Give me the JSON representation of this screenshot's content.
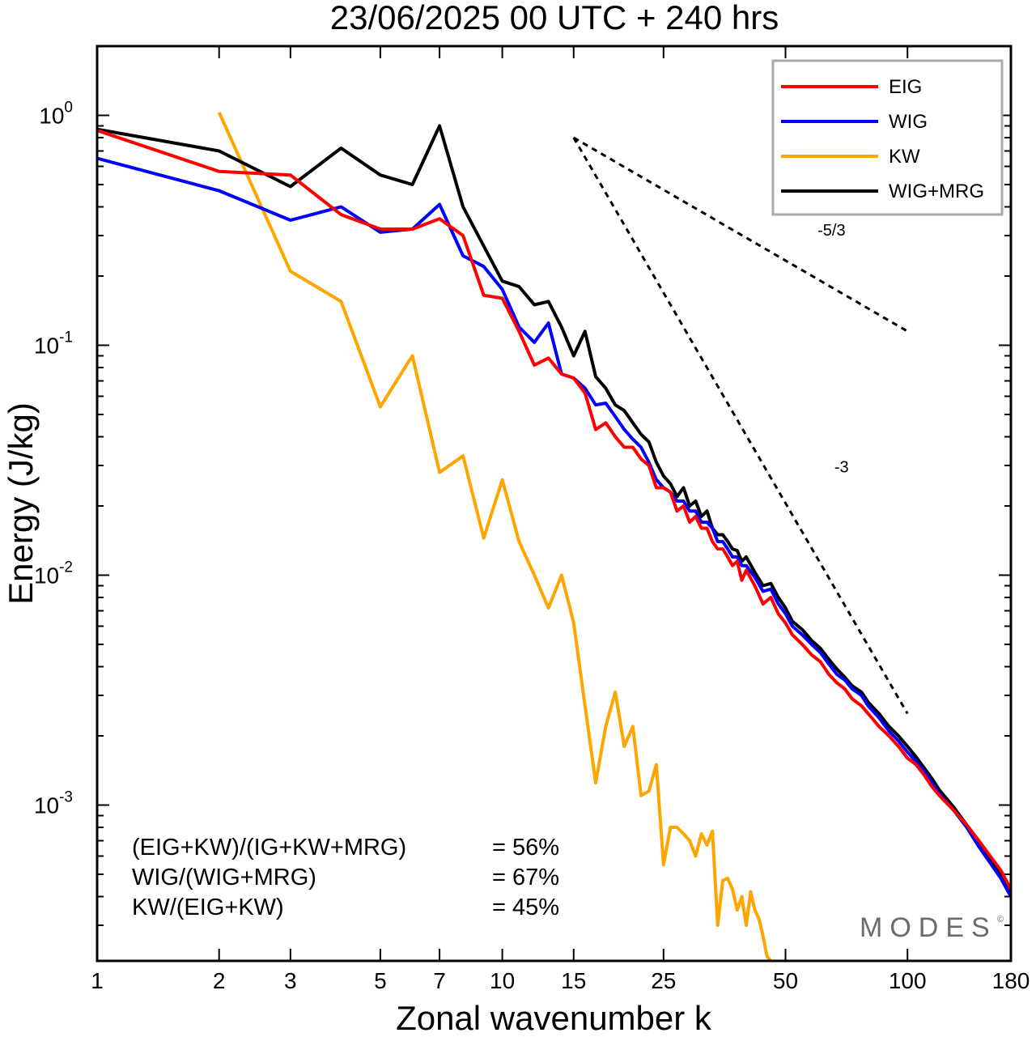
{
  "chart_data": {
    "type": "line",
    "title": "23/06/2025  00 UTC  + 240 hrs",
    "xlabel": "Zonal wavenumber k",
    "ylabel": "Energy (J/kg)",
    "xscale": "log",
    "yscale": "log",
    "xlim": [
      1,
      180
    ],
    "ylim": [
      0.00021,
      2.0
    ],
    "xticks": [
      1,
      2,
      3,
      5,
      7,
      10,
      15,
      25,
      50,
      100,
      180
    ],
    "xtick_labels": [
      "1",
      "2",
      "3",
      "5",
      "7",
      "10",
      "15",
      "25",
      "50",
      "100",
      "180"
    ],
    "yticks": [
      {
        "value": 1,
        "base": "10",
        "exp": "0"
      },
      {
        "value": 0.1,
        "base": "10",
        "exp": "-1"
      },
      {
        "value": 0.01,
        "base": "10",
        "exp": "-2"
      },
      {
        "value": 0.001,
        "base": "10",
        "exp": "-3"
      }
    ],
    "legend_position": "top-right",
    "series": [
      {
        "name": "EIG",
        "color": "#ff0000",
        "points": [
          [
            1,
            0.86
          ],
          [
            2,
            0.57
          ],
          [
            3,
            0.55
          ],
          [
            4,
            0.37
          ],
          [
            5,
            0.32
          ],
          [
            6,
            0.32
          ],
          [
            7,
            0.355
          ],
          [
            8,
            0.3
          ],
          [
            9,
            0.165
          ],
          [
            10,
            0.16
          ],
          [
            11,
            0.115
          ],
          [
            12,
            0.082
          ],
          [
            13,
            0.088
          ],
          [
            14,
            0.075
          ],
          [
            15,
            0.072
          ],
          [
            16,
            0.062
          ],
          [
            17,
            0.043
          ],
          [
            18,
            0.046
          ],
          [
            19,
            0.04
          ],
          [
            20,
            0.036
          ],
          [
            21,
            0.036
          ],
          [
            22,
            0.032
          ],
          [
            23,
            0.03
          ],
          [
            24,
            0.024
          ],
          [
            25,
            0.024
          ],
          [
            26,
            0.023
          ],
          [
            27,
            0.019
          ],
          [
            28,
            0.02
          ],
          [
            29,
            0.017
          ],
          [
            30,
            0.018
          ],
          [
            31,
            0.016
          ],
          [
            32,
            0.016
          ],
          [
            33,
            0.014
          ],
          [
            34,
            0.013
          ],
          [
            35,
            0.013
          ],
          [
            36,
            0.012
          ],
          [
            37,
            0.011
          ],
          [
            38,
            0.0115
          ],
          [
            39,
            0.0095
          ],
          [
            40,
            0.0105
          ],
          [
            42,
            0.009
          ],
          [
            44,
            0.0075
          ],
          [
            46,
            0.008
          ],
          [
            48,
            0.0068
          ],
          [
            50,
            0.0062
          ],
          [
            52,
            0.0055
          ],
          [
            55,
            0.005
          ],
          [
            58,
            0.0045
          ],
          [
            61,
            0.0042
          ],
          [
            64,
            0.0037
          ],
          [
            67,
            0.0034
          ],
          [
            70,
            0.0032
          ],
          [
            73,
            0.0029
          ],
          [
            77,
            0.0027
          ],
          [
            80,
            0.0025
          ],
          [
            85,
            0.0022
          ],
          [
            90,
            0.002
          ],
          [
            95,
            0.0018
          ],
          [
            100,
            0.0016
          ],
          [
            105,
            0.0015
          ],
          [
            110,
            0.00135
          ],
          [
            115,
            0.0012
          ],
          [
            120,
            0.0011
          ],
          [
            130,
            0.00095
          ],
          [
            140,
            0.00082
          ],
          [
            150,
            0.0007
          ],
          [
            160,
            0.0006
          ],
          [
            170,
            0.00052
          ],
          [
            180,
            0.00043
          ]
        ]
      },
      {
        "name": "WIG",
        "color": "#0000ff",
        "points": [
          [
            1,
            0.65
          ],
          [
            2,
            0.47
          ],
          [
            3,
            0.35
          ],
          [
            4,
            0.4
          ],
          [
            5,
            0.31
          ],
          [
            6,
            0.32
          ],
          [
            7,
            0.41
          ],
          [
            8,
            0.245
          ],
          [
            9,
            0.22
          ],
          [
            10,
            0.175
          ],
          [
            11,
            0.12
          ],
          [
            12,
            0.103
          ],
          [
            13,
            0.125
          ],
          [
            14,
            0.075
          ],
          [
            15,
            0.072
          ],
          [
            16,
            0.065
          ],
          [
            17,
            0.055
          ],
          [
            18,
            0.056
          ],
          [
            19,
            0.049
          ],
          [
            20,
            0.043
          ],
          [
            21,
            0.039
          ],
          [
            22,
            0.036
          ],
          [
            23,
            0.031
          ],
          [
            24,
            0.026
          ],
          [
            25,
            0.024
          ],
          [
            26,
            0.023
          ],
          [
            27,
            0.021
          ],
          [
            28,
            0.021
          ],
          [
            29,
            0.019
          ],
          [
            30,
            0.019
          ],
          [
            31,
            0.017
          ],
          [
            32,
            0.017
          ],
          [
            33,
            0.016
          ],
          [
            34,
            0.014
          ],
          [
            35,
            0.014
          ],
          [
            36,
            0.013
          ],
          [
            37,
            0.012
          ],
          [
            38,
            0.012
          ],
          [
            39,
            0.011
          ],
          [
            40,
            0.011
          ],
          [
            42,
            0.0098
          ],
          [
            44,
            0.0085
          ],
          [
            46,
            0.0087
          ],
          [
            48,
            0.0075
          ],
          [
            50,
            0.0068
          ],
          [
            52,
            0.006
          ],
          [
            55,
            0.0055
          ],
          [
            58,
            0.005
          ],
          [
            61,
            0.0046
          ],
          [
            64,
            0.0041
          ],
          [
            67,
            0.0037
          ],
          [
            70,
            0.0035
          ],
          [
            73,
            0.0032
          ],
          [
            77,
            0.003
          ],
          [
            80,
            0.0027
          ],
          [
            85,
            0.0024
          ],
          [
            90,
            0.0021
          ],
          [
            95,
            0.0019
          ],
          [
            100,
            0.0017
          ],
          [
            105,
            0.00155
          ],
          [
            110,
            0.0014
          ],
          [
            115,
            0.00125
          ],
          [
            120,
            0.00112
          ],
          [
            130,
            0.00095
          ],
          [
            140,
            0.0008
          ],
          [
            150,
            0.00066
          ],
          [
            160,
            0.00056
          ],
          [
            170,
            0.00048
          ],
          [
            180,
            0.0004
          ]
        ]
      },
      {
        "name": "KW",
        "color": "#ffa500",
        "points": [
          [
            2,
            1.03
          ],
          [
            3,
            0.21
          ],
          [
            4,
            0.155
          ],
          [
            5,
            0.054
          ],
          [
            6,
            0.09
          ],
          [
            7,
            0.028
          ],
          [
            8,
            0.033
          ],
          [
            9,
            0.0145
          ],
          [
            10,
            0.026
          ],
          [
            11,
            0.014
          ],
          [
            12,
            0.01
          ],
          [
            13,
            0.0072
          ],
          [
            14,
            0.01
          ],
          [
            15,
            0.0062
          ],
          [
            16,
            0.0027
          ],
          [
            17,
            0.00125
          ],
          [
            18,
            0.0022
          ],
          [
            19,
            0.0031
          ],
          [
            20,
            0.0018
          ],
          [
            21,
            0.0022
          ],
          [
            22,
            0.0011
          ],
          [
            23,
            0.00115
          ],
          [
            24,
            0.0015
          ],
          [
            25,
            0.00055
          ],
          [
            26,
            0.0008
          ],
          [
            27,
            0.0008
          ],
          [
            28,
            0.00075
          ],
          [
            29,
            0.0007
          ],
          [
            30,
            0.0006
          ],
          [
            31,
            0.00075
          ],
          [
            32,
            0.00067
          ],
          [
            33,
            0.00077
          ],
          [
            34,
            0.0003
          ],
          [
            35,
            0.00047
          ],
          [
            36,
            0.00048
          ],
          [
            37,
            0.00043
          ],
          [
            38,
            0.00035
          ],
          [
            39,
            0.0004
          ],
          [
            40,
            0.0003
          ],
          [
            41,
            0.00042
          ],
          [
            42,
            0.00035
          ],
          [
            43,
            0.00032
          ],
          [
            44,
            0.00027
          ],
          [
            45,
            0.00022
          ],
          [
            46,
            0.00021
          ]
        ]
      },
      {
        "name": "WIG+MRG",
        "color": "#000000",
        "points": [
          [
            1,
            0.87
          ],
          [
            2,
            0.7
          ],
          [
            3,
            0.49
          ],
          [
            4,
            0.72
          ],
          [
            5,
            0.55
          ],
          [
            6,
            0.5
          ],
          [
            7,
            0.9
          ],
          [
            8,
            0.4
          ],
          [
            9,
            0.27
          ],
          [
            10,
            0.19
          ],
          [
            11,
            0.18
          ],
          [
            12,
            0.15
          ],
          [
            13,
            0.155
          ],
          [
            14,
            0.12
          ],
          [
            15,
            0.09
          ],
          [
            16,
            0.115
          ],
          [
            17,
            0.073
          ],
          [
            18,
            0.065
          ],
          [
            19,
            0.055
          ],
          [
            20,
            0.052
          ],
          [
            21,
            0.046
          ],
          [
            22,
            0.041
          ],
          [
            23,
            0.038
          ],
          [
            24,
            0.031
          ],
          [
            25,
            0.027
          ],
          [
            26,
            0.025
          ],
          [
            27,
            0.022
          ],
          [
            28,
            0.024
          ],
          [
            29,
            0.02
          ],
          [
            30,
            0.021
          ],
          [
            31,
            0.018
          ],
          [
            32,
            0.019
          ],
          [
            33,
            0.016
          ],
          [
            34,
            0.015
          ],
          [
            35,
            0.015
          ],
          [
            36,
            0.014
          ],
          [
            37,
            0.013
          ],
          [
            38,
            0.0128
          ],
          [
            39,
            0.0115
          ],
          [
            40,
            0.012
          ],
          [
            42,
            0.0103
          ],
          [
            44,
            0.009
          ],
          [
            46,
            0.0092
          ],
          [
            48,
            0.008
          ],
          [
            50,
            0.0072
          ],
          [
            52,
            0.0063
          ],
          [
            55,
            0.0058
          ],
          [
            58,
            0.0052
          ],
          [
            61,
            0.0048
          ],
          [
            64,
            0.0043
          ],
          [
            67,
            0.0039
          ],
          [
            70,
            0.0036
          ],
          [
            73,
            0.0033
          ],
          [
            77,
            0.0031
          ],
          [
            80,
            0.0028
          ],
          [
            85,
            0.0025
          ],
          [
            90,
            0.0022
          ],
          [
            95,
            0.002
          ],
          [
            100,
            0.0018
          ],
          [
            105,
            0.00162
          ],
          [
            110,
            0.00145
          ],
          [
            115,
            0.0013
          ],
          [
            120,
            0.00116
          ],
          [
            130,
            0.00098
          ],
          [
            140,
            0.00082
          ],
          [
            150,
            0.00069
          ],
          [
            160,
            0.00058
          ],
          [
            170,
            0.0005
          ],
          [
            180,
            0.00041
          ]
        ]
      }
    ],
    "reference_lines": [
      {
        "label": "-5/3",
        "color": "#000000",
        "style": "dashed",
        "points": [
          [
            15,
            0.8
          ],
          [
            100,
            0.115
          ]
        ],
        "label_at": [
          60,
          0.3
        ]
      },
      {
        "label": "-3",
        "color": "#000000",
        "style": "dashed",
        "points": [
          [
            15,
            0.8
          ],
          [
            100,
            0.0025
          ]
        ],
        "label_at": [
          66,
          0.028
        ]
      }
    ],
    "annotations": [
      {
        "label": "(EIG+KW)/(IG+KW+MRG)",
        "value": "= 56%"
      },
      {
        "label": "WIG/(WIG+MRG)",
        "value": "= 67%"
      },
      {
        "label": "KW/(EIG+KW)",
        "value": "= 45%"
      }
    ],
    "brand": {
      "text": "MODES",
      "mark": "©"
    }
  }
}
